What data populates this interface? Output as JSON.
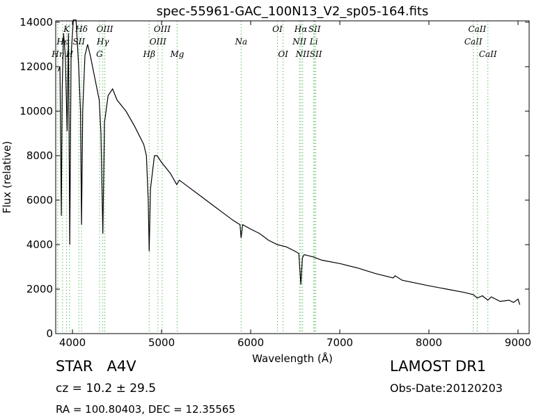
{
  "chart_data": {
    "type": "line",
    "title": "spec-55961-GAC_100N13_V2_sp05-164.fits",
    "xlabel": "Wavelength (Å)",
    "ylabel": "Flux (relative)",
    "xlim": [
      3812,
      9125
    ],
    "ylim": [
      0,
      14060
    ],
    "xticks": [
      4000,
      5000,
      6000,
      7000,
      8000,
      9000
    ],
    "yticks": [
      0,
      2000,
      4000,
      6000,
      8000,
      10000,
      12000,
      14000
    ],
    "color": "#000000",
    "line_color": "#5cb85c",
    "x": [
      3840,
      3860,
      3875,
      3885,
      3900,
      3920,
      3940,
      3955,
      3970,
      3985,
      4010,
      4040,
      4070,
      4090,
      4102,
      4115,
      4140,
      4170,
      4200,
      4250,
      4300,
      4320,
      4341,
      4360,
      4400,
      4450,
      4500,
      4600,
      4700,
      4800,
      4830,
      4850,
      4861,
      4875,
      4920,
      4950,
      5000,
      5100,
      5170,
      5200,
      5300,
      5400,
      5500,
      5600,
      5700,
      5800,
      5880,
      5893,
      5910,
      6000,
      6100,
      6200,
      6300,
      6400,
      6500,
      6540,
      6563,
      6580,
      6600,
      6700,
      6800,
      7000,
      7200,
      7400,
      7600,
      7620,
      7700,
      8000,
      8200,
      8400,
      8500,
      8542,
      8600,
      8662,
      8700,
      8800,
      8900,
      8950,
      9000,
      9020
    ],
    "values": [
      11800,
      12000,
      5300,
      11000,
      13500,
      12500,
      9100,
      13500,
      4000,
      12500,
      14100,
      14100,
      12000,
      10000,
      4900,
      10000,
      12500,
      13000,
      12500,
      11500,
      10500,
      9000,
      4500,
      9500,
      10700,
      11000,
      10500,
      10000,
      9300,
      8500,
      8000,
      6000,
      3700,
      6500,
      8000,
      8000,
      7700,
      7200,
      6700,
      6900,
      6600,
      6300,
      6000,
      5700,
      5400,
      5100,
      4900,
      4300,
      4900,
      4700,
      4500,
      4200,
      4000,
      3900,
      3700,
      3600,
      2200,
      3400,
      3550,
      3450,
      3300,
      3150,
      2950,
      2700,
      2500,
      2600,
      2400,
      2150,
      2000,
      1850,
      1750,
      1600,
      1700,
      1500,
      1650,
      1450,
      1500,
      1400,
      1550,
      1300
    ],
    "lines": [
      {
        "label": "Hη",
        "x": 3835
      },
      {
        "label": "Hε",
        "x": 3889
      },
      {
        "label": "K",
        "x": 3934
      },
      {
        "label": "H",
        "x": 3968
      },
      {
        "label": "SII",
        "x": 4072
      },
      {
        "label": "Hδ",
        "x": 4102
      },
      {
        "label": "G",
        "x": 4304
      },
      {
        "label": "Hγ",
        "x": 4341
      },
      {
        "label": "OIII",
        "x": 4363
      },
      {
        "label": "Hβ",
        "x": 4861
      },
      {
        "label": "OIII",
        "x": 4959
      },
      {
        "label": "OIII",
        "x": 5007
      },
      {
        "label": "Mg",
        "x": 5175
      },
      {
        "label": "Na",
        "x": 5893
      },
      {
        "label": "OI",
        "x": 6300
      },
      {
        "label": "OI",
        "x": 6364
      },
      {
        "label": "NII",
        "x": 6548
      },
      {
        "label": "Hα",
        "x": 6563
      },
      {
        "label": "NII",
        "x": 6583
      },
      {
        "label": "Li",
        "x": 6708
      },
      {
        "label": "SII",
        "x": 6716
      },
      {
        "label": "SII",
        "x": 6731
      },
      {
        "label": "CaII",
        "x": 8498
      },
      {
        "label": "CaII",
        "x": 8542
      },
      {
        "label": "CaII",
        "x": 8662
      }
    ],
    "footer": {
      "object": "STAR   A4V",
      "survey": "LAMOST DR1",
      "redshift": "cz = 10.2 ± 29.5",
      "date": "Obs-Date:20120203",
      "coords": "RA = 100.80403, DEC = 12.35565"
    }
  }
}
